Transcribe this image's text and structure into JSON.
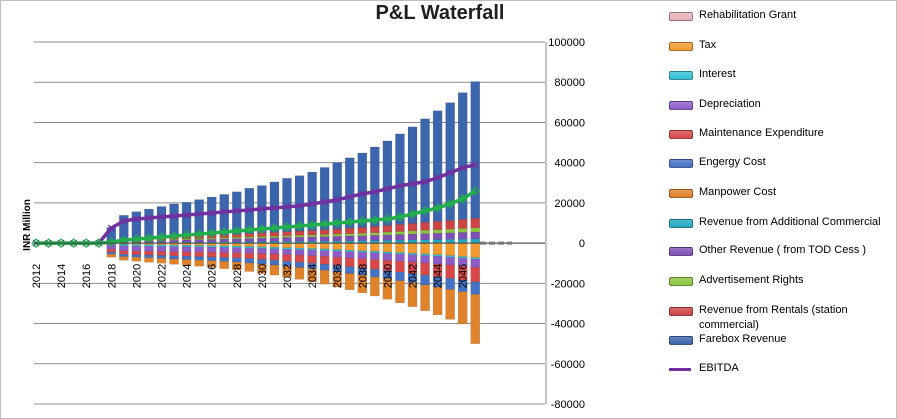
{
  "chart_data": {
    "type": "bar",
    "title": "P&L Waterfall",
    "ylabel": "INR Million",
    "xlabel": "",
    "ylim": [
      -80000,
      100000
    ],
    "yticks": [
      100000,
      80000,
      60000,
      40000,
      20000,
      0,
      -20000,
      -40000,
      -60000,
      -80000
    ],
    "xtick_labels": [
      "2012",
      "2014",
      "2016",
      "2018",
      "2020",
      "2022",
      "2024",
      "2026",
      "2028",
      "2030",
      "2032",
      "2034",
      "2036",
      "2038",
      "2040",
      "2042",
      "2044",
      "2046"
    ],
    "categories": [
      "2012",
      "2013",
      "2014",
      "2015",
      "2016",
      "2017",
      "2018",
      "2019",
      "2020",
      "2021",
      "2022",
      "2023",
      "2024",
      "2025",
      "2026",
      "2027",
      "2028",
      "2029",
      "2030",
      "2031",
      "2032",
      "2033",
      "2034",
      "2035",
      "2036",
      "2037",
      "2038",
      "2039",
      "2040",
      "2041",
      "2042",
      "2043",
      "2044",
      "2045",
      "2046",
      "2047"
    ],
    "legend_position": "right",
    "grid": true,
    "series": [
      {
        "name": "Rehabilitation Grant",
        "color": "#e8b0b8",
        "values": [
          0,
          0,
          0,
          0,
          0,
          0,
          0,
          0,
          0,
          0,
          0,
          0,
          0,
          0,
          0,
          0,
          0,
          0,
          0,
          0,
          0,
          0,
          0,
          0,
          0,
          0,
          0,
          0,
          0,
          0,
          0,
          0,
          0,
          0,
          0,
          0
        ]
      },
      {
        "name": "Tax",
        "color": "#f39a2e",
        "values": [
          0,
          0,
          0,
          0,
          0,
          0,
          0,
          -600,
          -700,
          -800,
          -900,
          -1000,
          -1100,
          -1200,
          -1300,
          -1400,
          -1500,
          -1700,
          -1900,
          -2100,
          -2300,
          -2500,
          -2700,
          -2900,
          -3200,
          -3500,
          -3800,
          -4100,
          -4400,
          -4700,
          -5000,
          -5400,
          -5800,
          -6200,
          -6700,
          -7200
        ]
      },
      {
        "name": "Interest",
        "color": "#33c1d6",
        "values": [
          0,
          0,
          0,
          0,
          0,
          0,
          -500,
          -800,
          -800,
          -800,
          -800,
          -800,
          -800,
          -800,
          -800,
          -800,
          -800,
          -800,
          -800,
          -800,
          -800,
          -800,
          -800,
          -800,
          -800,
          -800,
          -800,
          -800,
          -800,
          -800,
          -800,
          -800,
          -800,
          -800,
          -800,
          -800
        ]
      },
      {
        "name": "Depreciation",
        "color": "#8e5cc8",
        "values": [
          0,
          0,
          0,
          0,
          0,
          0,
          -2500,
          -2500,
          -2500,
          -2500,
          -2500,
          -2500,
          -2500,
          -2500,
          -2500,
          -2500,
          -2500,
          -2500,
          -2500,
          -2500,
          -2600,
          -2700,
          -2800,
          -2900,
          -3000,
          -3100,
          -3200,
          -3300,
          -3400,
          -3500,
          -3600,
          -3700,
          -3800,
          -3900,
          -4000,
          -4100
        ]
      },
      {
        "name": "Maintenance Expenditure",
        "color": "#d94848",
        "values": [
          0,
          0,
          0,
          0,
          0,
          0,
          -1500,
          -1600,
          -1700,
          -1800,
          -1900,
          -2000,
          -2100,
          -2200,
          -2300,
          -2400,
          -2500,
          -2700,
          -2900,
          -3100,
          -3300,
          -3500,
          -3700,
          -3900,
          -4100,
          -4300,
          -4500,
          -4800,
          -5100,
          -5400,
          -5700,
          -6000,
          -6300,
          -6600,
          -6900,
          -7200
        ]
      },
      {
        "name": "Engergy Cost",
        "color": "#4472c4",
        "values": [
          0,
          0,
          0,
          0,
          0,
          0,
          -1000,
          -1200,
          -1300,
          -1400,
          -1500,
          -1600,
          -1700,
          -1800,
          -1900,
          -2000,
          -2100,
          -2200,
          -2300,
          -2400,
          -2500,
          -2600,
          -2800,
          -3000,
          -3200,
          -3400,
          -3600,
          -3800,
          -4000,
          -4300,
          -4600,
          -4900,
          -5200,
          -5500,
          -5800,
          -6200
        ]
      },
      {
        "name": "Manpower Cost",
        "color": "#e0822a",
        "values": [
          0,
          0,
          0,
          0,
          0,
          0,
          -1500,
          -1800,
          -2000,
          -2200,
          -2400,
          -2600,
          -2800,
          -3000,
          -3300,
          -3600,
          -3900,
          -4200,
          -4600,
          -5000,
          -5400,
          -5900,
          -6400,
          -6900,
          -7500,
          -8100,
          -8800,
          -9500,
          -10200,
          -11000,
          -11900,
          -12800,
          -13800,
          -14900,
          -16000,
          -24500
        ]
      },
      {
        "name": "Revenue from Additional Commercial",
        "color": "#1fa9c2",
        "values": [
          0,
          0,
          0,
          0,
          0,
          0,
          200,
          250,
          300,
          350,
          400,
          450,
          500,
          550,
          600,
          650,
          700,
          750,
          800,
          850,
          900,
          950,
          1000,
          1050,
          1100,
          1150,
          1200,
          1300,
          1400,
          1500,
          1600,
          1700,
          1800,
          1900,
          2000,
          2100
        ]
      },
      {
        "name": "Other Revenue ( from TOD Cess )",
        "color": "#7f4fb8",
        "values": [
          0,
          0,
          0,
          0,
          0,
          0,
          500,
          600,
          700,
          800,
          900,
          1000,
          1100,
          1200,
          1300,
          1400,
          1500,
          1600,
          1700,
          1800,
          1900,
          2000,
          2100,
          2200,
          2300,
          2400,
          2500,
          2600,
          2700,
          2800,
          2900,
          3000,
          3100,
          3200,
          3300,
          3400
        ]
      },
      {
        "name": "Advertisement Rights",
        "color": "#8cc63f",
        "values": [
          0,
          0,
          0,
          0,
          0,
          0,
          200,
          250,
          300,
          350,
          400,
          450,
          500,
          550,
          600,
          650,
          700,
          750,
          800,
          850,
          900,
          950,
          1000,
          1050,
          1100,
          1150,
          1200,
          1300,
          1400,
          1500,
          1600,
          1700,
          1800,
          1900,
          2000,
          2100
        ]
      },
      {
        "name": "Revenue from Rentals (station commercial)",
        "color": "#cc4444",
        "values": [
          0,
          0,
          0,
          0,
          0,
          0,
          400,
          700,
          800,
          900,
          1000,
          1100,
          1200,
          1300,
          1400,
          1500,
          1600,
          1700,
          1800,
          1900,
          2000,
          2100,
          2200,
          2300,
          2500,
          2700,
          2900,
          3100,
          3300,
          3500,
          3700,
          3900,
          4100,
          4300,
          4500,
          4700
        ]
      },
      {
        "name": "Farebox Revenue",
        "color": "#3b66ad",
        "values": [
          0,
          0,
          0,
          0,
          0,
          0,
          6500,
          12000,
          13500,
          14500,
          15500,
          16500,
          17000,
          18000,
          19000,
          20000,
          21000,
          22500,
          23500,
          25000,
          26500,
          27500,
          29000,
          31000,
          33000,
          35000,
          37000,
          39500,
          42000,
          45000,
          48000,
          51500,
          55000,
          58500,
          63000,
          68000
        ]
      },
      {
        "name": "EBITDA",
        "color": "#7030a0",
        "line": true,
        "values": [
          0,
          0,
          0,
          0,
          0,
          0,
          7500,
          11000,
          12000,
          12500,
          13000,
          13500,
          14000,
          14500,
          15000,
          15500,
          16000,
          16500,
          17000,
          17500,
          18000,
          18500,
          19500,
          20500,
          21500,
          23000,
          24500,
          25500,
          27000,
          28500,
          29500,
          30500,
          32500,
          35000,
          37500,
          39000
        ]
      },
      {
        "name": "",
        "color": "#22b14c",
        "line": true,
        "values": [
          0,
          0,
          0,
          0,
          0,
          0,
          500,
          1500,
          2000,
          2500,
          3000,
          3500,
          4000,
          4500,
          5000,
          5500,
          6000,
          6500,
          7000,
          7500,
          8000,
          8500,
          9000,
          9500,
          10000,
          10500,
          11000,
          11500,
          12000,
          13000,
          14500,
          16000,
          17500,
          19500,
          22000,
          26000
        ]
      }
    ]
  }
}
